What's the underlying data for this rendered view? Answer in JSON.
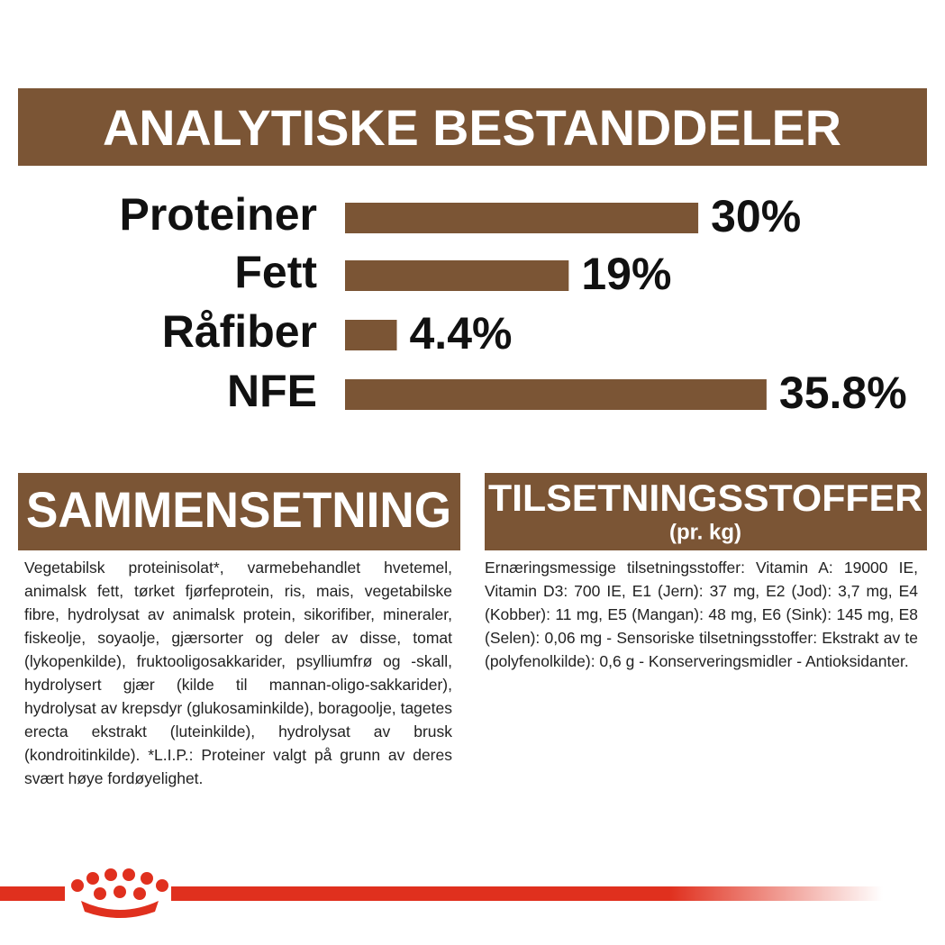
{
  "header": {
    "title": "ANALYTISKE BESTANDDELER"
  },
  "chart_data": {
    "type": "bar",
    "orientation": "horizontal",
    "color": "#7b5535",
    "categories": [
      "Proteiner",
      "Fett",
      "Råfiber",
      "NFE"
    ],
    "values": [
      30,
      19,
      4.4,
      35.8
    ],
    "value_labels": [
      "30%",
      "19%",
      "4.4%",
      "35.8%"
    ]
  },
  "composition": {
    "title": "SAMMENSETNING",
    "text": "Vegetabilsk proteinisolat*, varmebehandlet hvetemel, animalsk fett, tørket fjørfeprotein, ris, mais, vegetabilske fibre, hydrolysat av animalsk protein, sikorifiber, mineraler, fiskeolje, soyaolje, gjærsorter og deler av disse, tomat (lykopenkilde), fruktooligosakkarider, psylliumfrø og -skall, hydrolysert gjær (kilde til mannan-oligo-sakkarider), hydrolysat av krepsdyr (glukosaminkilde), boragoolje, tagetes erecta ekstrakt (luteinkilde), hydrolysat av brusk (kondroitinkilde). *L.I.P.: Proteiner valgt på grunn av deres svært høye fordøyelighet."
  },
  "additives": {
    "title": "TILSETNINGSSTOFFER",
    "subtitle": "(pr. kg)",
    "text": "Ernæringsmessige tilsetningsstoffer: Vitamin A: 19000 IE, Vitamin D3: 700 IE, E1 (Jern): 37 mg, E2 (Jod): 3,7 mg, E4 (Kobber): 11 mg, E5 (Mangan): 48 mg, E6 (Sink): 145 mg, E8 (Selen): 0,06 mg - Sensoriske tilsetningsstoffer: Ekstrakt av te (polyfenolkilde): 0,6 g - Konserveringsmidler - Antioksidanter."
  }
}
